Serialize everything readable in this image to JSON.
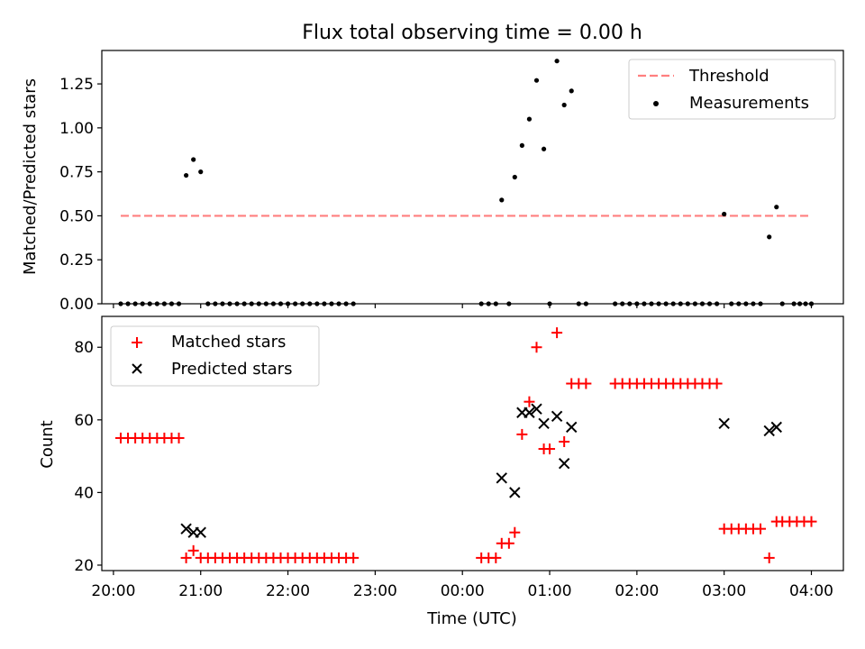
{
  "figure": {
    "title": "Flux total observing time = 0.00 h",
    "xlabel": "Time (UTC)"
  },
  "chart_data": [
    {
      "type": "scatter",
      "panel": "top",
      "ylabel": "Matched/Predicted stars",
      "ylim": [
        0,
        1.44
      ],
      "xlim": [
        "19:52",
        "04:22"
      ],
      "yticks": [
        "0.00",
        "0.25",
        "0.50",
        "0.75",
        "1.00",
        "1.25"
      ],
      "ytick_values": [
        0,
        0.25,
        0.5,
        0.75,
        1.0,
        1.25
      ],
      "legend_position": "top-right",
      "grid": false,
      "threshold": {
        "name": "Threshold",
        "value": 0.5,
        "x_start": "20:05",
        "x_end": "04:00",
        "color": "#ff7f7f",
        "style": "dashed"
      },
      "series": [
        {
          "name": "Measurements",
          "marker": "dot",
          "color": "#000000",
          "points": [
            [
              "20:05",
              0
            ],
            [
              "20:10",
              0
            ],
            [
              "20:15",
              0
            ],
            [
              "20:20",
              0
            ],
            [
              "20:25",
              0
            ],
            [
              "20:30",
              0
            ],
            [
              "20:35",
              0
            ],
            [
              "20:40",
              0
            ],
            [
              "20:45",
              0
            ],
            [
              "20:50",
              0.73
            ],
            [
              "20:55",
              0.82
            ],
            [
              "21:00",
              0.75
            ],
            [
              "21:05",
              0
            ],
            [
              "21:10",
              0
            ],
            [
              "21:15",
              0
            ],
            [
              "21:20",
              0
            ],
            [
              "21:25",
              0
            ],
            [
              "21:30",
              0
            ],
            [
              "21:35",
              0
            ],
            [
              "21:40",
              0
            ],
            [
              "21:45",
              0
            ],
            [
              "21:50",
              0
            ],
            [
              "21:55",
              0
            ],
            [
              "22:00",
              0
            ],
            [
              "22:05",
              0
            ],
            [
              "22:10",
              0
            ],
            [
              "22:15",
              0
            ],
            [
              "22:20",
              0
            ],
            [
              "22:25",
              0
            ],
            [
              "22:30",
              0
            ],
            [
              "22:35",
              0
            ],
            [
              "22:40",
              0
            ],
            [
              "22:45",
              0
            ],
            [
              "00:13",
              0
            ],
            [
              "00:18",
              0
            ],
            [
              "00:23",
              0
            ],
            [
              "00:27",
              0.59
            ],
            [
              "00:32",
              0
            ],
            [
              "00:36",
              0.72
            ],
            [
              "00:41",
              0.9
            ],
            [
              "00:46",
              1.05
            ],
            [
              "00:51",
              1.27
            ],
            [
              "00:56",
              0.88
            ],
            [
              "01:00",
              0
            ],
            [
              "01:05",
              1.38
            ],
            [
              "01:10",
              1.13
            ],
            [
              "01:15",
              1.21
            ],
            [
              "01:20",
              0
            ],
            [
              "01:25",
              0
            ],
            [
              "01:45",
              0
            ],
            [
              "01:50",
              0
            ],
            [
              "01:55",
              0
            ],
            [
              "02:00",
              0
            ],
            [
              "02:05",
              0
            ],
            [
              "02:10",
              0
            ],
            [
              "02:15",
              0
            ],
            [
              "02:20",
              0
            ],
            [
              "02:25",
              0
            ],
            [
              "02:30",
              0
            ],
            [
              "02:35",
              0
            ],
            [
              "02:40",
              0
            ],
            [
              "02:45",
              0
            ],
            [
              "02:50",
              0
            ],
            [
              "02:55",
              0
            ],
            [
              "03:00",
              0.51
            ],
            [
              "03:05",
              0
            ],
            [
              "03:10",
              0
            ],
            [
              "03:15",
              0
            ],
            [
              "03:20",
              0
            ],
            [
              "03:25",
              0
            ],
            [
              "03:31",
              0.38
            ],
            [
              "03:36",
              0.55
            ],
            [
              "03:40",
              0
            ],
            [
              "03:48",
              0
            ],
            [
              "03:52",
              0
            ],
            [
              "03:56",
              0
            ],
            [
              "04:00",
              0
            ]
          ]
        }
      ]
    },
    {
      "type": "scatter",
      "panel": "bottom",
      "ylabel": "Count",
      "ylim": [
        18.5,
        88.5
      ],
      "xlim": [
        "19:52",
        "04:22"
      ],
      "yticks": [
        "20",
        "40",
        "60",
        "80"
      ],
      "ytick_values": [
        20,
        40,
        60,
        80
      ],
      "xticks": [
        "20:00",
        "21:00",
        "22:00",
        "23:00",
        "00:00",
        "01:00",
        "02:00",
        "03:00",
        "04:00"
      ],
      "legend_position": "top-left",
      "grid": false,
      "series": [
        {
          "name": "Matched stars",
          "marker": "plus",
          "color": "#ff0000",
          "points": [
            [
              "20:05",
              55
            ],
            [
              "20:10",
              55
            ],
            [
              "20:15",
              55
            ],
            [
              "20:20",
              55
            ],
            [
              "20:25",
              55
            ],
            [
              "20:30",
              55
            ],
            [
              "20:35",
              55
            ],
            [
              "20:40",
              55
            ],
            [
              "20:45",
              55
            ],
            [
              "20:50",
              22
            ],
            [
              "20:55",
              24
            ],
            [
              "21:00",
              22
            ],
            [
              "21:05",
              22
            ],
            [
              "21:10",
              22
            ],
            [
              "21:15",
              22
            ],
            [
              "21:20",
              22
            ],
            [
              "21:25",
              22
            ],
            [
              "21:30",
              22
            ],
            [
              "21:35",
              22
            ],
            [
              "21:40",
              22
            ],
            [
              "21:45",
              22
            ],
            [
              "21:50",
              22
            ],
            [
              "21:55",
              22
            ],
            [
              "22:00",
              22
            ],
            [
              "22:05",
              22
            ],
            [
              "22:10",
              22
            ],
            [
              "22:15",
              22
            ],
            [
              "22:20",
              22
            ],
            [
              "22:25",
              22
            ],
            [
              "22:30",
              22
            ],
            [
              "22:35",
              22
            ],
            [
              "22:40",
              22
            ],
            [
              "22:45",
              22
            ],
            [
              "00:13",
              22
            ],
            [
              "00:18",
              22
            ],
            [
              "00:23",
              22
            ],
            [
              "00:27",
              26
            ],
            [
              "00:32",
              26
            ],
            [
              "00:36",
              29
            ],
            [
              "00:41",
              56
            ],
            [
              "00:46",
              65
            ],
            [
              "00:51",
              80
            ],
            [
              "00:56",
              52
            ],
            [
              "01:00",
              52
            ],
            [
              "01:05",
              84
            ],
            [
              "01:10",
              54
            ],
            [
              "01:15",
              70
            ],
            [
              "01:20",
              70
            ],
            [
              "01:25",
              70
            ],
            [
              "01:45",
              70
            ],
            [
              "01:50",
              70
            ],
            [
              "01:55",
              70
            ],
            [
              "02:00",
              70
            ],
            [
              "02:05",
              70
            ],
            [
              "02:10",
              70
            ],
            [
              "02:15",
              70
            ],
            [
              "02:20",
              70
            ],
            [
              "02:25",
              70
            ],
            [
              "02:30",
              70
            ],
            [
              "02:35",
              70
            ],
            [
              "02:40",
              70
            ],
            [
              "02:45",
              70
            ],
            [
              "02:50",
              70
            ],
            [
              "02:55",
              70
            ],
            [
              "03:00",
              30
            ],
            [
              "03:05",
              30
            ],
            [
              "03:10",
              30
            ],
            [
              "03:15",
              30
            ],
            [
              "03:20",
              30
            ],
            [
              "03:25",
              30
            ],
            [
              "03:31",
              22
            ],
            [
              "03:36",
              32
            ],
            [
              "03:40",
              32
            ],
            [
              "03:45",
              32
            ],
            [
              "03:50",
              32
            ],
            [
              "03:55",
              32
            ],
            [
              "04:00",
              32
            ]
          ]
        },
        {
          "name": "Predicted stars",
          "marker": "x",
          "color": "#000000",
          "points": [
            [
              "20:50",
              30
            ],
            [
              "20:55",
              29
            ],
            [
              "21:00",
              29
            ],
            [
              "00:27",
              44
            ],
            [
              "00:36",
              40
            ],
            [
              "00:41",
              62
            ],
            [
              "00:46",
              62
            ],
            [
              "00:51",
              63
            ],
            [
              "00:56",
              59
            ],
            [
              "01:05",
              61
            ],
            [
              "01:10",
              48
            ],
            [
              "01:15",
              58
            ],
            [
              "03:00",
              59
            ],
            [
              "03:31",
              57
            ],
            [
              "03:36",
              58
            ]
          ]
        }
      ]
    }
  ]
}
